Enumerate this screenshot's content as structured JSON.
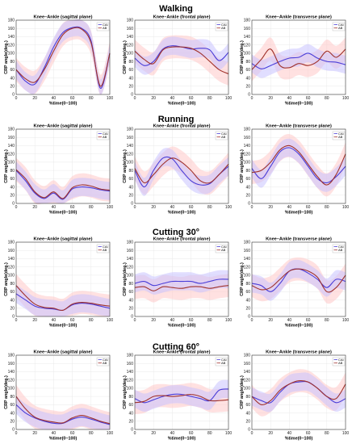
{
  "colors": {
    "cai": "#4a3dd8",
    "ab": "#a0322c",
    "cai_band": "#c9c3ff",
    "ab_band": "#ffc8c8"
  },
  "legend": [
    "CAI",
    "AB"
  ],
  "sections": [
    {
      "title": "Walking"
    },
    {
      "title": "Running"
    },
    {
      "title": "Cutting 30°"
    },
    {
      "title": "Cutting 60°"
    }
  ],
  "chart_data": [
    {
      "type": "line",
      "title": "Knee–Ankle (sagittal plane)",
      "xlabel": "%time(0~100)",
      "ylabel": "CRP angle(deg.)",
      "xlim": [
        0,
        100
      ],
      "ylim": [
        0,
        180
      ],
      "x": [
        0,
        10,
        20,
        30,
        40,
        50,
        60,
        70,
        80,
        90,
        100
      ],
      "series": [
        {
          "name": "CAI",
          "values": [
            60,
            32,
            25,
            65,
            115,
            150,
            162,
            160,
            130,
            15,
            100
          ]
        },
        {
          "name": "AB",
          "values": [
            60,
            38,
            30,
            60,
            105,
            145,
            160,
            158,
            125,
            20,
            100
          ]
        }
      ]
    },
    {
      "type": "line",
      "title": "Knee–Ankle (frontal plane)",
      "xlabel": "%time(0~100)",
      "ylabel": "CRP angle(deg.)",
      "xlim": [
        0,
        100
      ],
      "ylim": [
        0,
        180
      ],
      "x": [
        0,
        10,
        20,
        30,
        40,
        50,
        60,
        70,
        80,
        90,
        100
      ],
      "series": [
        {
          "name": "CAI",
          "values": [
            88,
            70,
            80,
            110,
            118,
            115,
            110,
            112,
            108,
            82,
            102
          ]
        },
        {
          "name": "AB",
          "values": [
            105,
            85,
            75,
            108,
            115,
            115,
            112,
            100,
            80,
            60,
            50
          ]
        }
      ]
    },
    {
      "type": "line",
      "title": "Knee–Ankle (transverse plane)",
      "xlabel": "%time(0~100)",
      "ylabel": "CRP angle(deg.)",
      "xlim": [
        0,
        100
      ],
      "ylim": [
        0,
        180
      ],
      "x": [
        0,
        10,
        20,
        30,
        40,
        50,
        60,
        70,
        80,
        90,
        100
      ],
      "series": [
        {
          "name": "CAI",
          "values": [
            75,
            62,
            70,
            80,
            88,
            90,
            100,
            88,
            80,
            78,
            72
          ]
        },
        {
          "name": "AB",
          "values": [
            60,
            85,
            110,
            70,
            65,
            75,
            70,
            80,
            105,
            90,
            110
          ]
        }
      ]
    },
    {
      "type": "line",
      "title": "Knee–Ankle (sagittal plane)",
      "xlabel": "%time(0~100)",
      "ylabel": "CRP angle(deg.)",
      "xlim": [
        0,
        100
      ],
      "ylim": [
        0,
        180
      ],
      "x": [
        0,
        10,
        20,
        30,
        40,
        50,
        60,
        70,
        80,
        90,
        100
      ],
      "series": [
        {
          "name": "CAI",
          "values": [
            80,
            55,
            25,
            12,
            25,
            10,
            35,
            40,
            38,
            33,
            30
          ]
        },
        {
          "name": "AB",
          "values": [
            82,
            60,
            28,
            14,
            28,
            12,
            38,
            45,
            42,
            35,
            32
          ]
        }
      ]
    },
    {
      "type": "line",
      "title": "Knee–Ankle (frontal plane)",
      "xlabel": "%time(0~100)",
      "ylabel": "CRP angle(deg.)",
      "xlim": [
        0,
        100
      ],
      "ylim": [
        0,
        180
      ],
      "x": [
        0,
        10,
        20,
        30,
        40,
        50,
        60,
        70,
        80,
        90,
        100
      ],
      "series": [
        {
          "name": "CAI",
          "values": [
            80,
            40,
            80,
            110,
            108,
            80,
            55,
            45,
            48,
            70,
            90
          ]
        },
        {
          "name": "AB",
          "values": [
            85,
            50,
            70,
            95,
            110,
            100,
            80,
            55,
            50,
            70,
            95
          ]
        }
      ]
    },
    {
      "type": "line",
      "title": "Knee–Ankle (transverse plane)",
      "xlabel": "%time(0~100)",
      "ylabel": "CRP angle(deg.)",
      "xlim": [
        0,
        100
      ],
      "ylim": [
        0,
        180
      ],
      "x": [
        0,
        10,
        20,
        30,
        40,
        50,
        60,
        70,
        80,
        90,
        100
      ],
      "series": [
        {
          "name": "CAI",
          "values": [
            85,
            60,
            90,
            125,
            135,
            120,
            90,
            60,
            50,
            65,
            90
          ]
        },
        {
          "name": "AB",
          "values": [
            75,
            80,
            100,
            130,
            140,
            125,
            95,
            65,
            45,
            70,
            120
          ]
        }
      ]
    },
    {
      "type": "line",
      "title": "Knee–Ankle (sagittal plane)",
      "xlabel": "%time(0~100)",
      "ylabel": "CRP angle(deg.)",
      "xlim": [
        0,
        100
      ],
      "ylim": [
        0,
        180
      ],
      "x": [
        0,
        10,
        20,
        30,
        40,
        50,
        60,
        70,
        80,
        90,
        100
      ],
      "series": [
        {
          "name": "CAI",
          "values": [
            55,
            40,
            25,
            20,
            18,
            15,
            28,
            32,
            30,
            25,
            20
          ]
        },
        {
          "name": "AB",
          "values": [
            75,
            50,
            30,
            22,
            20,
            15,
            30,
            34,
            32,
            28,
            25
          ]
        }
      ]
    },
    {
      "type": "line",
      "title": "Knee–Ankle (frontal plane)",
      "xlabel": "%time(0~100)",
      "ylabel": "CRP angle(deg.)",
      "xlim": [
        0,
        100
      ],
      "ylim": [
        0,
        180
      ],
      "x": [
        0,
        10,
        20,
        30,
        40,
        50,
        60,
        70,
        80,
        90,
        100
      ],
      "series": [
        {
          "name": "CAI",
          "values": [
            80,
            85,
            75,
            80,
            85,
            85,
            85,
            80,
            85,
            90,
            90
          ]
        },
        {
          "name": "AB",
          "values": [
            70,
            72,
            62,
            72,
            70,
            68,
            72,
            72,
            68,
            72,
            75
          ]
        }
      ]
    },
    {
      "type": "line",
      "title": "Knee–Ankle (transverse plane)",
      "xlabel": "%time(0~100)",
      "ylabel": "CRP angle(deg.)",
      "xlim": [
        0,
        100
      ],
      "ylim": [
        0,
        180
      ],
      "x": [
        0,
        10,
        20,
        30,
        40,
        50,
        60,
        70,
        80,
        90,
        100
      ],
      "series": [
        {
          "name": "CAI",
          "values": [
            80,
            75,
            60,
            80,
            110,
            115,
            105,
            90,
            70,
            90,
            85
          ]
        },
        {
          "name": "AB",
          "values": [
            75,
            65,
            70,
            90,
            110,
            115,
            110,
            95,
            60,
            70,
            100
          ]
        }
      ]
    },
    {
      "type": "line",
      "title": "Knee–Ankle (sagittal plane)",
      "xlabel": "%time(0~100)",
      "ylabel": "CRP angle(deg.)",
      "xlim": [
        0,
        100
      ],
      "ylim": [
        0,
        180
      ],
      "x": [
        0,
        10,
        20,
        30,
        40,
        50,
        60,
        70,
        80,
        90,
        100
      ],
      "series": [
        {
          "name": "CAI",
          "values": [
            60,
            40,
            28,
            20,
            15,
            15,
            25,
            30,
            25,
            18,
            12
          ]
        },
        {
          "name": "AB",
          "values": [
            80,
            50,
            30,
            22,
            18,
            16,
            28,
            34,
            28,
            20,
            14
          ]
        }
      ]
    },
    {
      "type": "line",
      "title": "Knee–Ankle (frontal plane)",
      "xlabel": "%time(0~100)",
      "ylabel": "CRP angle(deg.)",
      "xlim": [
        0,
        100
      ],
      "ylim": [
        0,
        180
      ],
      "x": [
        0,
        10,
        20,
        30,
        40,
        50,
        60,
        70,
        80,
        90,
        100
      ],
      "series": [
        {
          "name": "CAI",
          "values": [
            75,
            65,
            72,
            80,
            85,
            85,
            80,
            75,
            70,
            95,
            98
          ]
        },
        {
          "name": "AB",
          "values": [
            65,
            68,
            80,
            82,
            80,
            82,
            85,
            80,
            70,
            70,
            72
          ]
        }
      ]
    },
    {
      "type": "line",
      "title": "Knee–Ankle (transverse plane)",
      "xlabel": "%time(0~100)",
      "ylabel": "CRP angle(deg.)",
      "xlim": [
        0,
        100
      ],
      "ylim": [
        0,
        180
      ],
      "x": [
        0,
        10,
        20,
        30,
        40,
        50,
        60,
        70,
        80,
        90,
        100
      ],
      "series": [
        {
          "name": "CAI",
          "values": [
            80,
            70,
            65,
            90,
            110,
            115,
            115,
            100,
            80,
            65,
            75
          ]
        },
        {
          "name": "AB",
          "values": [
            80,
            60,
            70,
            95,
            110,
            118,
            115,
            100,
            80,
            75,
            110
          ]
        }
      ]
    }
  ]
}
